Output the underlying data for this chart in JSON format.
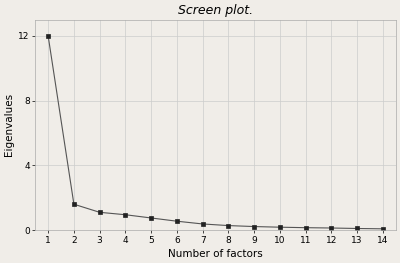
{
  "title": "Screen plot.",
  "xlabel": "Number of factors",
  "ylabel": "Eigenvalues",
  "x": [
    1,
    2,
    3,
    4,
    5,
    6,
    7,
    8,
    9,
    10,
    11,
    12,
    13,
    14
  ],
  "y": [
    12.0,
    1.6,
    1.1,
    0.95,
    0.75,
    0.55,
    0.38,
    0.28,
    0.22,
    0.18,
    0.15,
    0.13,
    0.1,
    0.08
  ],
  "ylim": [
    0,
    13
  ],
  "xlim": [
    0.5,
    14.5
  ],
  "yticks": [
    0,
    4,
    8,
    12
  ],
  "xticks": [
    1,
    2,
    3,
    4,
    5,
    6,
    7,
    8,
    9,
    10,
    11,
    12,
    13,
    14
  ],
  "line_color": "#555555",
  "marker": "s",
  "marker_size": 3,
  "marker_color": "#222222",
  "grid_color": "#cccccc",
  "background_color": "#f0ede8",
  "title_fontsize": 9,
  "label_fontsize": 7.5,
  "tick_fontsize": 6.5
}
